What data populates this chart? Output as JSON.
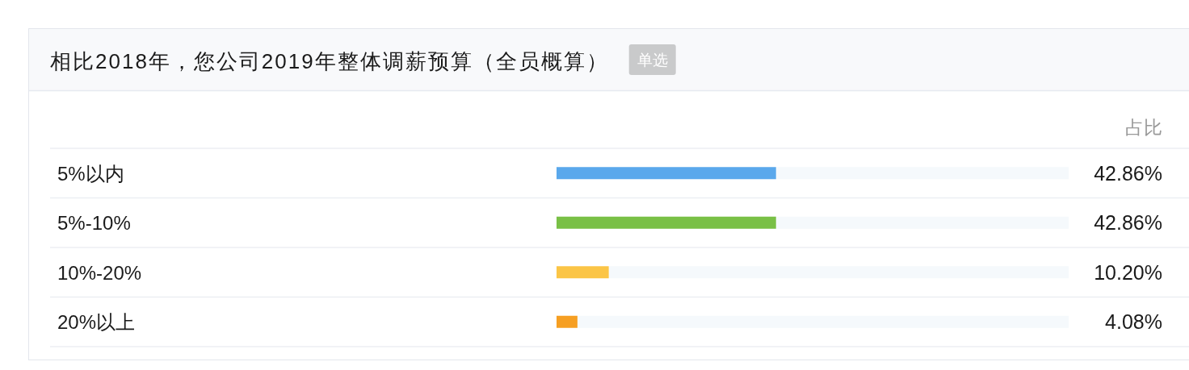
{
  "chart_data": {
    "type": "bar",
    "orientation": "horizontal",
    "title": "相比2018年，您公司2019年整体调薪预算（全员概算）",
    "xlabel": "占比",
    "annotations": [
      "单选"
    ],
    "categories": [
      "5%以内",
      "5%-10%",
      "10%-20%",
      "20%以上"
    ],
    "values": [
      42.86,
      42.86,
      10.2,
      4.08
    ],
    "value_labels": [
      "42.86%",
      "42.86%",
      "10.20%",
      "4.08%"
    ],
    "colors": [
      "#5aa8ec",
      "#79c046",
      "#fbc546",
      "#f69f22"
    ],
    "xlim": [
      0,
      100
    ],
    "tick_labels": "y",
    "legend": false,
    "grid": false
  }
}
